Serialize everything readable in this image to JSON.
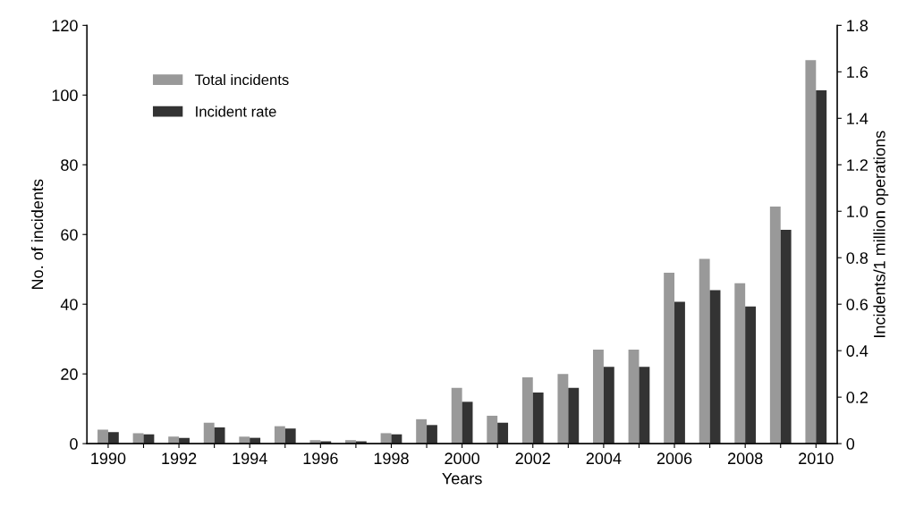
{
  "chart_data": {
    "type": "bar",
    "xlabel": "Years",
    "ylabel": "No. of incidents",
    "y2label": "Incidents/1 million operations",
    "categories": [
      "1990",
      null,
      "1992",
      null,
      "1994",
      null,
      "1996",
      null,
      "1998",
      null,
      "2000",
      null,
      "2002",
      null,
      "2004",
      null,
      "2006",
      null,
      "2008",
      null,
      "2010"
    ],
    "series": [
      {
        "name": "Total incidents",
        "color": "#999999",
        "values": [
          4,
          3,
          2,
          6,
          2,
          5,
          1,
          1,
          3,
          7,
          16,
          8,
          19,
          20,
          27,
          27,
          49,
          53,
          46,
          68,
          110
        ]
      },
      {
        "name": "Incident rate",
        "color": "#333333",
        "axis": "y2",
        "values": [
          0.05,
          0.04,
          0.025,
          0.07,
          0.025,
          0.065,
          0.01,
          0.01,
          0.04,
          0.08,
          0.18,
          0.09,
          0.22,
          0.24,
          0.33,
          0.33,
          0.61,
          0.66,
          0.59,
          0.92,
          1.52
        ]
      }
    ],
    "ylim": [
      0,
      120
    ],
    "yticks": [
      0,
      20,
      40,
      60,
      80,
      100,
      120
    ],
    "y2lim": [
      0,
      1.8
    ],
    "y2ticks": [
      {
        "value": 0,
        "label": "0"
      },
      {
        "value": 0.2,
        "label": "0.2"
      },
      {
        "value": 0.4,
        "label": "0.4"
      },
      {
        "value": 0.6,
        "label": "0.6"
      },
      {
        "value": 0.8,
        "label": "0.8"
      },
      {
        "value": 1.0,
        "label": "1.0"
      },
      {
        "value": 1.2,
        "label": "1.2"
      },
      {
        "value": 1.4,
        "label": "1.4"
      },
      {
        "value": 1.6,
        "label": "1.6"
      },
      {
        "value": 1.8,
        "label": "1.8"
      }
    ],
    "legend": "top left",
    "grid": false
  }
}
